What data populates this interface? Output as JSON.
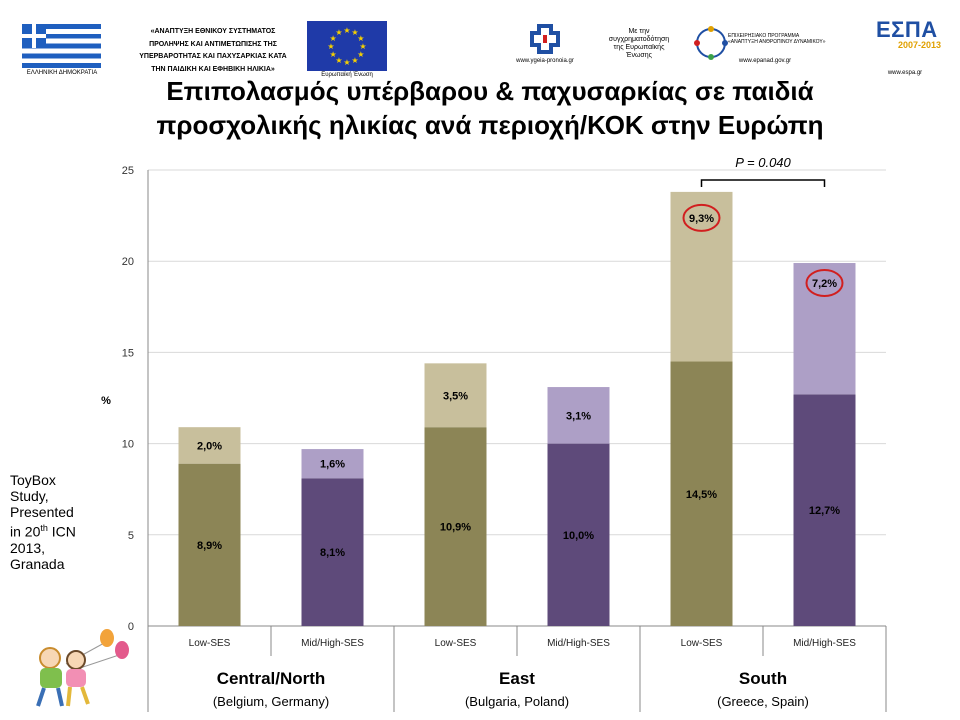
{
  "header": {
    "greek_flag_caption": "ΕΛΛΗΝΙΚΗ ΔΗΜΟΚΡΑΤΙΑ",
    "project_lines": [
      "«ΑΝΑΠΤΥΞΗ ΕΘΝΙΚΟΥ ΣΥΣΤΗΜΑΤΟΣ",
      "ΠΡΟΛΗΨΗΣ ΚΑΙ ΑΝΤΙΜΕΤΩΠΙΣΗΣ ΤΗΣ",
      "ΥΠΕΡΒΑΡΟΤΗΤΑΣ ΚΑΙ ΠΑΧΥΣΑΡΚΙΑΣ ΚΑΤΑ",
      "ΤΗΝ ΠΑΙΔΙΚΗ ΚΑΙ ΕΦΗΒΙΚΗ ΗΛΙΚΙΑ»"
    ],
    "eu_flag_caption": "Ευρωπαϊκή Ένωση",
    "ministry_url": "www.ygeia-pronoia.gr",
    "cofunded_lines": [
      "Με την",
      "συγχρηματοδότηση",
      "της Ευρωπαϊκής",
      "Ένωσης"
    ],
    "op_lines": [
      "ΕΠΙΧΕΙΡΗΣΙΑΚΟ ΠΡΟΓΡΑΜΜΑ",
      "«ΑΝΑΠΤΥΞΗ ΑΝΘΡΩΠΙΝΟΥ ΔΥΝΑΜΙΚΟΥ»"
    ],
    "op_url": "www.epanad.gov.gr",
    "espa_word": "ΕΣΠΑ",
    "espa_years": "2007-2013",
    "espa_url": "www.espa.gr"
  },
  "title_lines": [
    "Επιπολασμός υπέρβαρου & παχυσαρκίας σε παιδιά",
    "προσχολικής ηλικίας ανά περιοχή/ΚΟΚ στην Ευρώπη"
  ],
  "side_note": {
    "line1": "ToyBox",
    "line2": "Study,",
    "line3": "Presented",
    "line4_pre": "in 20",
    "line4_sup": "th",
    "line4_post": " ICN",
    "line5": "2013,",
    "line6": "Granada"
  },
  "chart_data": {
    "type": "bar",
    "stacked": true,
    "title": "",
    "ylabel": "%",
    "ylim": [
      0,
      25
    ],
    "yticks": [
      0,
      5,
      10,
      15,
      20,
      25
    ],
    "grid": true,
    "legend": "none",
    "groups": [
      {
        "name": "Central/North",
        "subtitle": "(Belgium, Germany)"
      },
      {
        "name": "East",
        "subtitle": "(Bulgaria, Poland)"
      },
      {
        "name": "South",
        "subtitle": "(Greece, Spain)"
      }
    ],
    "bars": [
      {
        "group": 0,
        "category": "Low-SES",
        "bottom": 8.9,
        "top": 2.0,
        "bottom_label": "8,9%",
        "top_label": "2,0%",
        "ses": "low"
      },
      {
        "group": 0,
        "category": "Mid/High-SES",
        "bottom": 8.1,
        "top": 1.6,
        "bottom_label": "8,1%",
        "top_label": "1,6%",
        "ses": "midhigh"
      },
      {
        "group": 1,
        "category": "Low-SES",
        "bottom": 10.9,
        "top": 3.5,
        "bottom_label": "10,9%",
        "top_label": "3,5%",
        "ses": "low"
      },
      {
        "group": 1,
        "category": "Mid/High-SES",
        "bottom": 10.0,
        "top": 3.1,
        "bottom_label": "10,0%",
        "top_label": "3,1%",
        "ses": "midhigh"
      },
      {
        "group": 2,
        "category": "Low-SES",
        "bottom": 14.5,
        "top": 9.3,
        "bottom_label": "14,5%",
        "top_label": "9,3%",
        "ses": "low",
        "top_label_circled": true
      },
      {
        "group": 2,
        "category": "Mid/High-SES",
        "bottom": 12.7,
        "top": 7.2,
        "bottom_label": "12,7%",
        "top_label": "7,2%",
        "ses": "midhigh",
        "top_label_circled": true
      }
    ],
    "annotation": {
      "text": "P = 0.040",
      "between_bars": [
        4,
        5
      ]
    },
    "colors": {
      "low_bottom": "#8c8556",
      "low_top": "#c8bf9c",
      "midhigh_bottom": "#5e4a7a",
      "midhigh_top": "#ad9fc6",
      "circle": "#d11f1f",
      "grid": "#d9d9d9",
      "axis": "#888888"
    }
  }
}
